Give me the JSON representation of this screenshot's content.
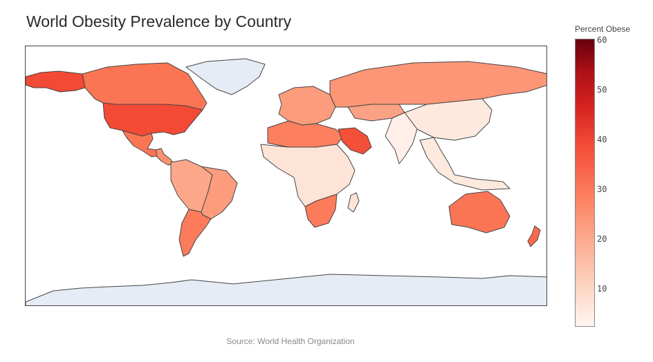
{
  "title": "World Obesity Prevalence by Country",
  "source_note": "Source: World Health Organization",
  "colorbar": {
    "title": "Percent Obese",
    "min": 2,
    "max": 60,
    "ticks": [
      "60",
      "50",
      "40",
      "30",
      "20",
      "10"
    ],
    "colorscale": [
      "#fff5f0",
      "#fee0d2",
      "#fcbba1",
      "#fc9272",
      "#fb6a4a",
      "#ef3b2c",
      "#cb181d",
      "#a50f15",
      "#67000d"
    ]
  },
  "no_data_color": "#e5ecf6",
  "border_color": "#444444",
  "regions": [
    {
      "name": "Canada",
      "value": 29
    },
    {
      "name": "United States",
      "value": 36
    },
    {
      "name": "Mexico",
      "value": 29
    },
    {
      "name": "Central America",
      "value": 24
    },
    {
      "name": "Brazil",
      "value": 22
    },
    {
      "name": "Argentina",
      "value": 28
    },
    {
      "name": "Northern South America",
      "value": 20
    },
    {
      "name": "Greenland",
      "value": null
    },
    {
      "name": "Western Europe",
      "value": 22
    },
    {
      "name": "Russia",
      "value": 23
    },
    {
      "name": "Kazakhstan",
      "value": 21
    },
    {
      "name": "China",
      "value": 6
    },
    {
      "name": "India",
      "value": 4
    },
    {
      "name": "Southeast Asia",
      "value": 6
    },
    {
      "name": "North Africa",
      "value": 27
    },
    {
      "name": "Saudi Arabia",
      "value": 35
    },
    {
      "name": "Sub-Saharan Africa",
      "value": 8
    },
    {
      "name": "South Africa",
      "value": 28
    },
    {
      "name": "Australia",
      "value": 29
    },
    {
      "name": "New Zealand",
      "value": 31
    },
    {
      "name": "Antarctica",
      "value": null
    }
  ]
}
